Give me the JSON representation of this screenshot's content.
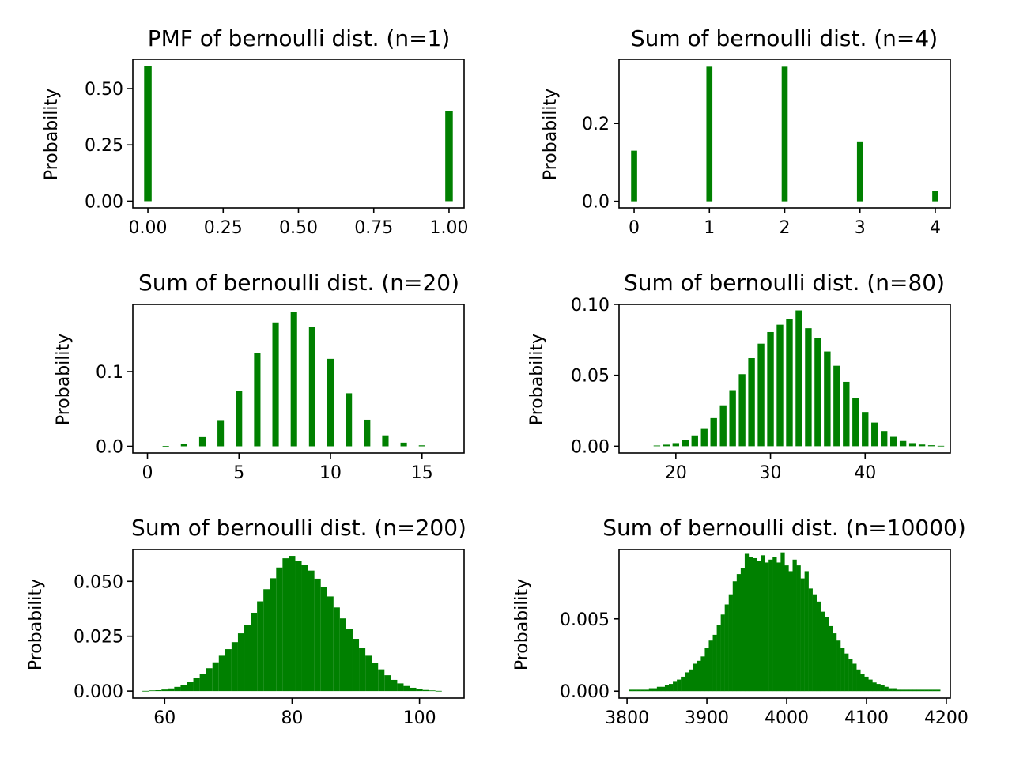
{
  "figure": {
    "background": "#ffffff",
    "bar_color": "#008000"
  },
  "chart_data": [
    {
      "type": "bar",
      "title": "PMF of bernoulli dist. (n=1)",
      "xlabel": "",
      "ylabel": "Probability",
      "xlim": [
        -0.05,
        1.05
      ],
      "ylim": [
        -0.03,
        0.63
      ],
      "bar_width": 0.025,
      "x": [
        0,
        1
      ],
      "values": [
        0.6,
        0.4
      ],
      "xticks": [
        0,
        0.25,
        0.5,
        0.75,
        1.0
      ],
      "xtick_labels": [
        "0.00",
        "0.25",
        "0.50",
        "0.75",
        "1.00"
      ],
      "yticks": [
        0,
        0.25,
        0.5
      ],
      "ytick_labels": [
        "0.00",
        "0.25",
        "0.50"
      ]
    },
    {
      "type": "bar",
      "title": "Sum of bernoulli dist. (n=4)",
      "xlabel": "",
      "ylabel": "Probability",
      "xlim": [
        -0.2,
        4.2
      ],
      "ylim": [
        -0.017,
        0.365
      ],
      "bar_width": 0.08,
      "x": [
        0,
        1,
        2,
        3,
        4
      ],
      "values": [
        0.13,
        0.346,
        0.346,
        0.154,
        0.026
      ],
      "xticks": [
        0,
        1,
        2,
        3,
        4
      ],
      "xtick_labels": [
        "0",
        "1",
        "2",
        "3",
        "4"
      ],
      "yticks": [
        0,
        0.2
      ],
      "ytick_labels": [
        "0.0",
        "0.2"
      ]
    },
    {
      "type": "bar",
      "title": "Sum of bernoulli dist. (n=20)",
      "xlabel": "",
      "ylabel": "Probability",
      "xlim": [
        -0.8,
        17.3
      ],
      "ylim": [
        -0.009,
        0.19
      ],
      "bar_width": 0.35,
      "x": [
        1,
        2,
        3,
        4,
        5,
        6,
        7,
        8,
        9,
        10,
        11,
        12,
        13,
        14,
        15
      ],
      "values": [
        0.0005,
        0.003,
        0.0123,
        0.035,
        0.0746,
        0.1244,
        0.1659,
        0.1797,
        0.1597,
        0.1171,
        0.071,
        0.0355,
        0.0146,
        0.0049,
        0.0013
      ],
      "xticks": [
        0,
        5,
        10,
        15
      ],
      "xtick_labels": [
        "0",
        "5",
        "10",
        "15"
      ],
      "yticks": [
        0,
        0.1
      ],
      "ytick_labels": [
        "0.0",
        "0.1"
      ]
    },
    {
      "type": "bar",
      "title": "Sum of bernoulli dist. (n=80)",
      "xlabel": "",
      "ylabel": "Probability",
      "xlim": [
        14,
        49
      ],
      "ylim": [
        -0.0048,
        0.1
      ],
      "bar_width": 0.7,
      "x": [
        18,
        19,
        20,
        21,
        22,
        23,
        24,
        25,
        26,
        27,
        28,
        29,
        30,
        31,
        32,
        33,
        34,
        35,
        36,
        37,
        38,
        39,
        40,
        41,
        42,
        43,
        44,
        45,
        46,
        47,
        48
      ],
      "values": [
        0.0005,
        0.0011,
        0.0022,
        0.0043,
        0.0076,
        0.0127,
        0.0198,
        0.0288,
        0.0395,
        0.0508,
        0.0621,
        0.0723,
        0.0805,
        0.0857,
        0.0896,
        0.0958,
        0.0832,
        0.0761,
        0.0668,
        0.0567,
        0.0454,
        0.0341,
        0.0241,
        0.0166,
        0.0107,
        0.0066,
        0.0037,
        0.0022,
        0.0012,
        0.0007,
        0.0003
      ],
      "xticks": [
        20,
        30,
        40
      ],
      "xtick_labels": [
        "20",
        "30",
        "40"
      ],
      "yticks": [
        0,
        0.05,
        0.1
      ],
      "ytick_labels": [
        "0.00",
        "0.05",
        "0.10"
      ]
    },
    {
      "type": "bar",
      "title": "Sum of bernoulli dist. (n=200)",
      "xlabel": "",
      "ylabel": "Probability",
      "xlim": [
        55,
        107
      ],
      "ylim": [
        -0.0032,
        0.0645
      ],
      "bar_width": 1.0,
      "x": [
        57,
        58,
        59,
        60,
        61,
        62,
        63,
        64,
        65,
        66,
        67,
        68,
        69,
        70,
        71,
        72,
        73,
        74,
        75,
        76,
        77,
        78,
        79,
        80,
        81,
        82,
        83,
        84,
        85,
        86,
        87,
        88,
        89,
        90,
        91,
        92,
        93,
        94,
        95,
        96,
        97,
        98,
        99,
        100,
        101,
        102,
        103
      ],
      "values": [
        0.0001,
        0.0003,
        0.0004,
        0.0007,
        0.0012,
        0.0019,
        0.0028,
        0.0042,
        0.0059,
        0.0079,
        0.0104,
        0.0131,
        0.0161,
        0.0191,
        0.0223,
        0.0263,
        0.0302,
        0.0357,
        0.0409,
        0.0464,
        0.0514,
        0.0563,
        0.0605,
        0.0616,
        0.0594,
        0.0574,
        0.0549,
        0.0512,
        0.0474,
        0.0431,
        0.0381,
        0.0331,
        0.0284,
        0.0238,
        0.0197,
        0.0161,
        0.013,
        0.0099,
        0.0072,
        0.0051,
        0.0035,
        0.0023,
        0.0015,
        0.0009,
        0.0005,
        0.0003,
        0.0001
      ],
      "xticks": [
        60,
        80,
        100
      ],
      "xtick_labels": [
        "60",
        "80",
        "100"
      ],
      "yticks": [
        0,
        0.025,
        0.05
      ],
      "ytick_labels": [
        "0.000",
        "0.025",
        "0.050"
      ]
    },
    {
      "type": "bar",
      "title": "Sum of bernoulli dist. (n=10000)",
      "xlabel": "",
      "ylabel": "Probability",
      "xlim": [
        3790,
        4205
      ],
      "ylim": [
        -0.00048,
        0.0098
      ],
      "bar_width": 5.2,
      "x": [
        3805,
        3810,
        3815,
        3820,
        3825,
        3830,
        3835,
        3840,
        3845,
        3850,
        3855,
        3860,
        3865,
        3870,
        3875,
        3880,
        3885,
        3890,
        3895,
        3900,
        3905,
        3910,
        3915,
        3920,
        3925,
        3930,
        3935,
        3940,
        3945,
        3950,
        3955,
        3960,
        3965,
        3970,
        3975,
        3980,
        3985,
        3990,
        3995,
        4000,
        4005,
        4010,
        4015,
        4020,
        4025,
        4030,
        4035,
        4040,
        4045,
        4050,
        4055,
        4060,
        4065,
        4070,
        4075,
        4080,
        4085,
        4090,
        4095,
        4100,
        4105,
        4110,
        4115,
        4120,
        4125,
        4130,
        4135,
        4140,
        4145,
        4150,
        4155,
        4160,
        4165,
        4170,
        4175,
        4180,
        4185,
        4190
      ],
      "values": [
        0.0001,
        0.0001,
        0.0001,
        0.0001,
        0.0001,
        0.0002,
        0.0002,
        0.0003,
        0.0003,
        0.0004,
        0.0005,
        0.0007,
        0.0008,
        0.001,
        0.0013,
        0.0015,
        0.0019,
        0.0021,
        0.0024,
        0.003,
        0.0035,
        0.0039,
        0.0046,
        0.0053,
        0.006,
        0.0067,
        0.0076,
        0.0081,
        0.0085,
        0.0095,
        0.0093,
        0.0092,
        0.009,
        0.0094,
        0.0089,
        0.0091,
        0.0093,
        0.0089,
        0.0096,
        0.0087,
        0.0083,
        0.0091,
        0.0087,
        0.0078,
        0.0083,
        0.0071,
        0.0067,
        0.0062,
        0.0055,
        0.0051,
        0.0045,
        0.004,
        0.0035,
        0.003,
        0.0026,
        0.0022,
        0.0019,
        0.0015,
        0.0012,
        0.001,
        0.0008,
        0.0006,
        0.0005,
        0.0004,
        0.0003,
        0.0002,
        0.0002,
        0.0001,
        0.0001,
        0.0001,
        0.0001,
        0.0001,
        0.0001,
        0.0001,
        0.0001,
        0.0001,
        0.0001,
        0.0001
      ],
      "xticks": [
        3800,
        3900,
        4000,
        4100,
        4200
      ],
      "xtick_labels": [
        "3800",
        "3900",
        "4000",
        "4100",
        "4200"
      ],
      "yticks": [
        0,
        0.005
      ],
      "ytick_labels": [
        "0.000",
        "0.005"
      ]
    }
  ]
}
